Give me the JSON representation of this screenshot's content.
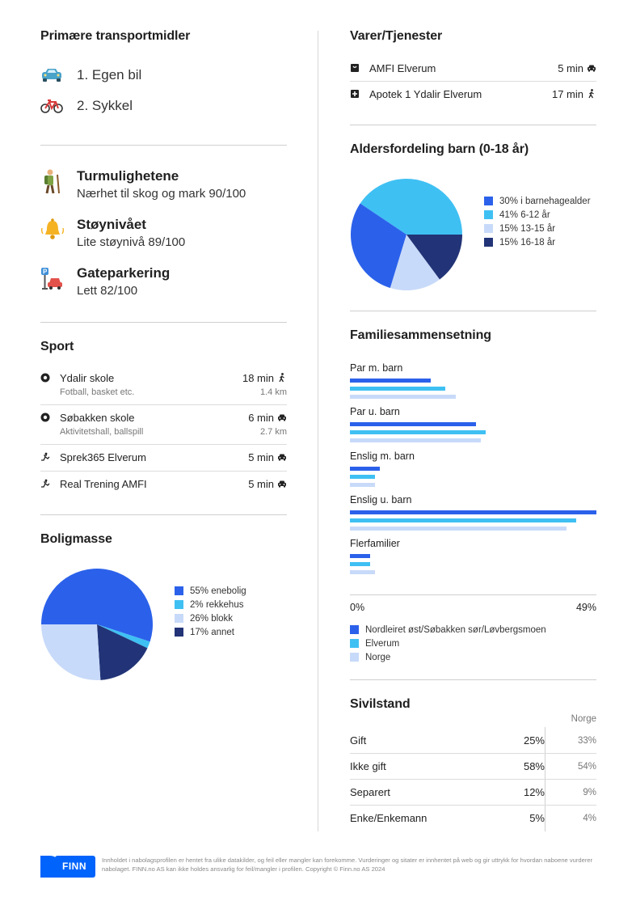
{
  "transport": {
    "title": "Primære transportmidler",
    "items": [
      {
        "label": "1. Egen bil",
        "icon": "car-icon"
      },
      {
        "label": "2. Sykkel",
        "icon": "bicycle-icon"
      }
    ]
  },
  "quality": [
    {
      "title": "Turmulighetene",
      "sub": "Nærhet til skog og mark 90/100",
      "icon": "hiker-icon"
    },
    {
      "title": "Støynivået",
      "sub": "Lite støynivå 89/100",
      "icon": "bell-icon"
    },
    {
      "title": "Gateparkering",
      "sub": "Lett 82/100",
      "icon": "parking-icon"
    }
  ],
  "sport": {
    "title": "Sport",
    "items": [
      {
        "name": "Ydalir skole",
        "sub": "Fotball, basket etc.",
        "time": "18 min",
        "dist": "1.4 km",
        "mode": "walk-icon",
        "icon": "soccer-ball-icon"
      },
      {
        "name": "Søbakken skole",
        "sub": "Aktivitetshall, ballspill",
        "time": "6 min",
        "dist": "2.7 km",
        "mode": "car-icon",
        "icon": "soccer-ball-icon"
      },
      {
        "name": "Sprek365 Elverum",
        "sub": "",
        "time": "5 min",
        "dist": "",
        "mode": "car-icon",
        "icon": "gym-icon"
      },
      {
        "name": "Real Trening AMFI",
        "sub": "",
        "time": "5 min",
        "dist": "",
        "mode": "car-icon",
        "icon": "gym-icon"
      }
    ]
  },
  "housing": {
    "title": "Boligmasse",
    "legend": [
      "55% enebolig",
      "2% rekkehus",
      "26% blokk",
      "17% annet"
    ]
  },
  "goods": {
    "title": "Varer/Tjenester",
    "items": [
      {
        "name": "AMFI Elverum",
        "time": "5 min",
        "mode": "car-icon",
        "icon": "shopping-bag-icon"
      },
      {
        "name": "Apotek 1 Ydalir Elverum",
        "time": "17 min",
        "mode": "walk-icon",
        "icon": "pharmacy-icon"
      }
    ]
  },
  "ages": {
    "title": "Aldersfordeling barn (0-18 år)",
    "legend": [
      "30% i barnehagealder",
      "41% 6-12 år",
      "15% 13-15 år",
      "15% 16-18 år"
    ]
  },
  "family": {
    "title": "Familiesammensetning",
    "groups": [
      "Par m. barn",
      "Par u. barn",
      "Enslig m. barn",
      "Enslig u. barn",
      "Flerfamilier"
    ],
    "axis_min": "0%",
    "axis_max": "49%",
    "legend": [
      "Nordleiret øst/Søbakken sør/Løvbergsmoen",
      "Elverum",
      "Norge"
    ]
  },
  "civil": {
    "title": "Sivilstand",
    "norge_label": "Norge",
    "rows": [
      {
        "label": "Gift",
        "value": "25%",
        "norge": "33%"
      },
      {
        "label": "Ikke gift",
        "value": "58%",
        "norge": "54%"
      },
      {
        "label": "Separert",
        "value": "12%",
        "norge": "9%"
      },
      {
        "label": "Enke/Enkemann",
        "value": "5%",
        "norge": "4%"
      }
    ]
  },
  "footer": {
    "logo_text": "FINN",
    "text": "Innholdet i nabolagsprofilen er hentet fra ulike datakilder, og feil eller mangler kan forekomme. Vurderinger og sitater er innhentet på web og gir uttrykk for hvordan naboene vurderer nabolaget. FINN.no AS kan ikke holdes ansvarlig for feil/mangler i profilen. Copyright © Finn.no AS 2024"
  },
  "colors": {
    "dark_blue": "#2b61ea",
    "light_blue": "#3fc0f3",
    "pale_blue": "#c8daf9",
    "navy": "#223477"
  },
  "chart_data": [
    {
      "type": "pie",
      "title": "Boligmasse",
      "categories": [
        "enebolig",
        "rekkehus",
        "blokk",
        "annet"
      ],
      "values": [
        55,
        2,
        26,
        17
      ]
    },
    {
      "type": "pie",
      "title": "Aldersfordeling barn (0-18 år)",
      "categories": [
        "i barnehagealder",
        "6-12 år",
        "13-15 år",
        "16-18 år"
      ],
      "values": [
        30,
        41,
        15,
        15
      ]
    },
    {
      "type": "bar",
      "title": "Familiesammensetning",
      "categories": [
        "Par m. barn",
        "Par u. barn",
        "Enslig m. barn",
        "Enslig u. barn",
        "Flerfamilier"
      ],
      "xlim": [
        0,
        49
      ],
      "series": [
        {
          "name": "Nordleiret øst/Søbakken sør/Løvbergsmoen",
          "values": [
            16,
            25,
            6,
            49,
            4
          ]
        },
        {
          "name": "Elverum",
          "values": [
            19,
            27,
            5,
            45,
            4
          ]
        },
        {
          "name": "Norge",
          "values": [
            21,
            26,
            5,
            43,
            5
          ]
        }
      ]
    }
  ]
}
